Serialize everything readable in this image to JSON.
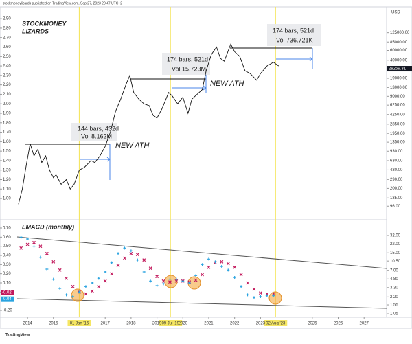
{
  "header": "stockmoneylizards published on TradingView.com, Sep 27, 2023 20:47 UTC+2",
  "footer": "TradingView",
  "chart_data": [
    {
      "type": "line",
      "title_lines": [
        "STOCKMONEY",
        "LIZARDS"
      ],
      "x": [
        2013.65,
        2013.8,
        2013.95,
        2014.05,
        2014.1,
        2014.25,
        2014.4,
        2014.55,
        2014.7,
        2014.85,
        2015.0,
        2015.1,
        2015.3,
        2015.5,
        2015.65,
        2015.8,
        2016.0,
        2016.2,
        2016.45,
        2016.6,
        2016.8,
        2017.0,
        2017.2,
        2017.4,
        2017.6,
        2017.8,
        2017.95,
        2018.1,
        2018.3,
        2018.5,
        2018.7,
        2018.85,
        2019.0,
        2019.2,
        2019.45,
        2019.6,
        2019.8,
        2020.0,
        2020.2,
        2020.35,
        2020.55,
        2020.75,
        2020.9,
        2021.1,
        2021.3,
        2021.45,
        2021.6,
        2021.85,
        2022.0,
        2022.2,
        2022.4,
        2022.6,
        2022.85,
        2023.0,
        2023.25,
        2023.5,
        2023.7
      ],
      "series": [
        {
          "color": "#111111",
          "values": [
            0.94,
            1.1,
            1.35,
            1.5,
            1.58,
            1.45,
            1.52,
            1.38,
            1.45,
            1.3,
            1.22,
            1.25,
            1.15,
            1.2,
            1.1,
            1.15,
            1.3,
            1.33,
            1.4,
            1.38,
            1.45,
            1.55,
            1.7,
            1.92,
            2.05,
            2.2,
            2.3,
            2.12,
            2.05,
            2.0,
            1.98,
            1.88,
            1.85,
            1.95,
            2.12,
            2.08,
            2.0,
            2.07,
            1.9,
            2.05,
            2.1,
            2.15,
            2.35,
            2.52,
            2.6,
            2.48,
            2.45,
            2.63,
            2.55,
            2.5,
            2.35,
            2.32,
            2.25,
            2.32,
            2.4,
            2.44,
            2.4
          ]
        }
      ],
      "xlim": [
        2013.6,
        2027.87
      ],
      "ylim": [
        0.79,
        3.01
      ],
      "yticks": [
        {
          "value": 2.9,
          "label": "2.90"
        },
        {
          "value": 2.8,
          "label": "2.80"
        },
        {
          "value": 2.7,
          "label": "2.70"
        },
        {
          "value": 2.6,
          "label": "2.60"
        },
        {
          "value": 2.5,
          "label": "2.50"
        },
        {
          "value": 2.4,
          "label": "2.40"
        },
        {
          "value": 2.3,
          "label": "2.30"
        },
        {
          "value": 2.2,
          "label": "2.20"
        },
        {
          "value": 2.1,
          "label": "2.10"
        },
        {
          "value": 2.0,
          "label": "2.00"
        },
        {
          "value": 1.9,
          "label": "1.90"
        },
        {
          "value": 1.8,
          "label": "1.80"
        },
        {
          "value": 1.7,
          "label": "1.70"
        },
        {
          "value": 1.6,
          "label": "1.60"
        },
        {
          "value": 1.5,
          "label": "1.50"
        },
        {
          "value": 1.4,
          "label": "1.40"
        },
        {
          "value": 1.3,
          "label": "1.30"
        },
        {
          "value": 1.2,
          "label": "1.20"
        },
        {
          "value": 1.1,
          "label": "1.10"
        },
        {
          "value": 1.0,
          "label": "1.00"
        }
      ],
      "y2_scale": "log",
      "y2_unit": "USD",
      "y2lim": [
        58,
        344000
      ],
      "y2ticks": [
        {
          "value": 125000,
          "label": "125000.00"
        },
        {
          "value": 85000,
          "label": "85000.00"
        },
        {
          "value": 60000,
          "label": "60000.00"
        },
        {
          "value": 40000,
          "label": "40000.00"
        },
        {
          "value": 19000,
          "label": "19000.00"
        },
        {
          "value": 13000,
          "label": "13000.00"
        },
        {
          "value": 9000,
          "label": "9000.00"
        },
        {
          "value": 6250,
          "label": "6250.00"
        },
        {
          "value": 4250,
          "label": "4250.00"
        },
        {
          "value": 2850,
          "label": "2850.00"
        },
        {
          "value": 1950,
          "label": "1950.00"
        },
        {
          "value": 1350,
          "label": "1350.00"
        },
        {
          "value": 930,
          "label": "930.00"
        },
        {
          "value": 630,
          "label": "630.00"
        },
        {
          "value": 430,
          "label": "430.00"
        },
        {
          "value": 290,
          "label": "290.00"
        },
        {
          "value": 200,
          "label": "200.00"
        },
        {
          "value": 135,
          "label": "135.00"
        },
        {
          "value": 96,
          "label": "96.00"
        }
      ],
      "last_value": {
        "value": 28259.31,
        "label": "28259.31",
        "color": "#131722"
      },
      "annotations": [
        "144 bars, 432d",
        "Vol 8.162M",
        "NEW ATH",
        "174 bars, 521d",
        "Vol 15.723M",
        "NEW ATH",
        "174 bars, 521d",
        "Vol 736.721K"
      ],
      "vlines": [
        {
          "x": 2016.0,
          "label": "01 Jan '16"
        },
        {
          "x": 2019.52,
          "label": "09 Jul '19"
        },
        {
          "x": 2023.58,
          "label": "02 Aug '23"
        }
      ],
      "vline_color": "#f5e663"
    },
    {
      "type": "line",
      "title": "LMACD (monthly)",
      "x": [
        2013.75,
        2014.0,
        2014.25,
        2014.5,
        2014.75,
        2015.0,
        2015.25,
        2015.5,
        2015.75,
        2016.0,
        2016.25,
        2016.5,
        2016.75,
        2017.0,
        2017.25,
        2017.5,
        2017.75,
        2018.0,
        2018.25,
        2018.5,
        2018.75,
        2019.0,
        2019.25,
        2019.5,
        2019.75,
        2020.0,
        2020.25,
        2020.5,
        2020.75,
        2021.0,
        2021.25,
        2021.5,
        2021.75,
        2022.0,
        2022.25,
        2022.5,
        2022.75,
        2023.0,
        2023.25,
        2023.5
      ],
      "series": [
        {
          "color": "#c2185b",
          "marker": "x",
          "values": [
            0.48,
            0.52,
            0.54,
            0.5,
            0.42,
            0.33,
            0.24,
            0.15,
            0.06,
            0.0,
            -0.02,
            0.01,
            0.06,
            0.12,
            0.2,
            0.29,
            0.37,
            0.42,
            0.41,
            0.35,
            0.26,
            0.17,
            0.12,
            0.11,
            0.12,
            0.12,
            0.11,
            0.13,
            0.19,
            0.27,
            0.32,
            0.33,
            0.31,
            0.27,
            0.19,
            0.1,
            0.03,
            -0.01,
            -0.02,
            -0.02
          ]
        },
        {
          "color": "#29a3e0",
          "marker": "+",
          "values": [
            0.6,
            0.58,
            0.5,
            0.38,
            0.25,
            0.14,
            0.04,
            -0.03,
            -0.05,
            0.0,
            0.06,
            0.1,
            0.15,
            0.22,
            0.32,
            0.42,
            0.48,
            0.45,
            0.35,
            0.22,
            0.12,
            0.07,
            0.09,
            0.14,
            0.14,
            0.12,
            0.1,
            0.18,
            0.3,
            0.36,
            0.33,
            0.28,
            0.24,
            0.16,
            0.06,
            -0.03,
            -0.06,
            -0.05,
            -0.04,
            -0.04
          ]
        }
      ],
      "xlim": [
        2013.6,
        2027.87
      ],
      "xticks": [
        2014,
        2015,
        2017,
        2018,
        2019,
        2020,
        2021,
        2022,
        2023,
        2025,
        2026,
        2027
      ],
      "ylim": [
        -0.245,
        0.775
      ],
      "yticks": [
        {
          "value": 0.7,
          "label": "0.70"
        },
        {
          "value": 0.6,
          "label": "0.60"
        },
        {
          "value": 0.5,
          "label": "0.50"
        },
        {
          "value": 0.4,
          "label": "0.40"
        },
        {
          "value": 0.3,
          "label": "0.30"
        },
        {
          "value": 0.2,
          "label": "0.20"
        },
        {
          "value": 0.1,
          "label": "0.10"
        },
        {
          "value": 0.0,
          "label": "0.00"
        },
        {
          "value": -0.2,
          "label": "-0.20"
        }
      ],
      "last_values": [
        {
          "value": -0.02,
          "label": "-0.02",
          "color": "#c2185b"
        },
        {
          "value": -0.04,
          "label": "-0.04",
          "color": "#29a3e0"
        }
      ],
      "y2_scale": "log",
      "y2lim": [
        1.02,
        60
      ],
      "y2ticks": [
        {
          "value": 32,
          "label": "32.00"
        },
        {
          "value": 22,
          "label": "22.00"
        },
        {
          "value": 15,
          "label": "15.00"
        },
        {
          "value": 10.5,
          "label": "10.50"
        },
        {
          "value": 7,
          "label": "7.00"
        },
        {
          "value": 4.8,
          "label": "4.80"
        },
        {
          "value": 3.3,
          "label": "3.30"
        },
        {
          "value": 2.2,
          "label": "2.20"
        },
        {
          "value": 1.55,
          "label": "1.55"
        },
        {
          "value": 1.05,
          "label": "1.05"
        }
      ]
    }
  ]
}
